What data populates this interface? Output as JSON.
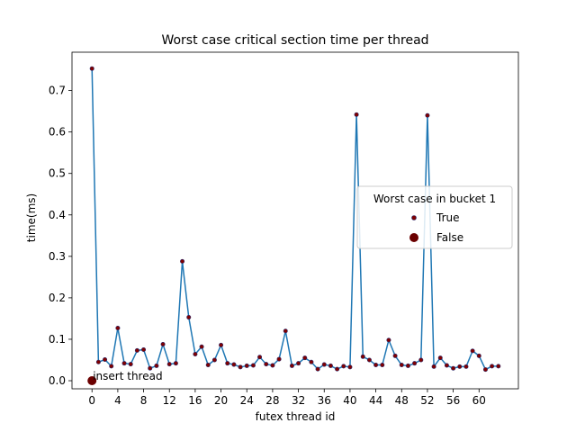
{
  "chart_data": {
    "type": "line",
    "title": "Worst case critical section time per thread",
    "xlabel": "futex thread id",
    "ylabel": "time(ms)",
    "xlim": [
      -3.1,
      66.1
    ],
    "ylim": [
      -0.0195,
      0.7925
    ],
    "xticks": [
      0,
      4,
      8,
      12,
      16,
      20,
      24,
      28,
      32,
      36,
      40,
      44,
      48,
      52,
      56,
      60
    ],
    "yticks": [
      0.0,
      0.1,
      0.2,
      0.3,
      0.4,
      0.5,
      0.6,
      0.7
    ],
    "ytick_labels": [
      "0.0",
      "0.1",
      "0.2",
      "0.3",
      "0.4",
      "0.5",
      "0.6",
      "0.7"
    ],
    "series": [
      {
        "kind": "line",
        "color": "#1f77b4",
        "x": [
          0,
          1,
          2,
          3,
          4,
          5,
          6,
          7,
          8,
          9,
          10,
          11,
          12,
          13,
          14,
          15,
          16,
          17,
          18,
          19,
          20,
          21,
          22,
          23,
          24,
          25,
          26,
          27,
          28,
          29,
          30,
          31,
          32,
          33,
          34,
          35,
          36,
          37,
          38,
          39,
          40,
          41,
          42,
          43,
          44,
          45,
          46,
          47,
          48,
          49,
          50,
          51,
          52,
          53,
          54,
          55,
          56,
          57,
          58,
          59,
          60,
          61,
          62,
          63
        ],
        "y": [
          0.753,
          0.045,
          0.051,
          0.035,
          0.127,
          0.042,
          0.04,
          0.073,
          0.075,
          0.03,
          0.036,
          0.088,
          0.04,
          0.042,
          0.288,
          0.153,
          0.064,
          0.082,
          0.038,
          0.05,
          0.086,
          0.042,
          0.039,
          0.033,
          0.036,
          0.037,
          0.057,
          0.04,
          0.037,
          0.052,
          0.12,
          0.036,
          0.042,
          0.055,
          0.045,
          0.028,
          0.039,
          0.036,
          0.028,
          0.035,
          0.033,
          0.642,
          0.058,
          0.05,
          0.038,
          0.038,
          0.098,
          0.06,
          0.038,
          0.036,
          0.042,
          0.05,
          0.64,
          0.034,
          0.055,
          0.037,
          0.03,
          0.034,
          0.034,
          0.072,
          0.06,
          0.027,
          0.035,
          0.035
        ]
      }
    ],
    "markers": [
      {
        "name": "True",
        "color": "#800000",
        "edgecolor": "#2a2a6e",
        "size": "small",
        "x_ref": "series.0.x",
        "y_ref": "series.0.y"
      },
      {
        "name": "False",
        "color": "#6b0000",
        "size": "large",
        "x": [
          0
        ],
        "y": [
          0.0
        ]
      }
    ],
    "annotations": [
      {
        "text": "insert thread",
        "x": 0,
        "y": 0.0
      }
    ],
    "legend": {
      "title": "Worst case in bucket 1",
      "placement": "center-right",
      "entries": [
        "True",
        "False"
      ]
    },
    "grid": false
  }
}
